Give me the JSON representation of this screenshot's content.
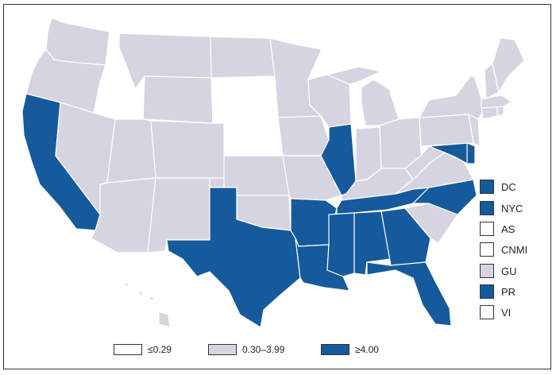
{
  "colors": {
    "low": "#ffffff",
    "mid": "#d6d4e0",
    "high": "#155a9c",
    "border": "#333333"
  },
  "legend": [
    {
      "label": "≤0.29",
      "category": "low"
    },
    {
      "label": "0.30–3.99",
      "category": "mid"
    },
    {
      "label": "≥4.00",
      "category": "high"
    }
  ],
  "territories": [
    {
      "label": "DC",
      "category": "high"
    },
    {
      "label": "NYC",
      "category": "high"
    },
    {
      "label": "AS",
      "category": "low"
    },
    {
      "label": "CNMI",
      "category": "low"
    },
    {
      "label": "GU",
      "category": "mid"
    },
    {
      "label": "PR",
      "category": "high"
    },
    {
      "label": "VI",
      "category": "low"
    }
  ],
  "states": {
    "WA": "mid",
    "OR": "mid",
    "CA": "high",
    "ID": "low",
    "NV": "mid",
    "MT": "mid",
    "WY": "mid",
    "UT": "mid",
    "AZ": "mid",
    "CO": "mid",
    "NM": "mid",
    "ND": "mid",
    "SD": "low",
    "NE": "low",
    "KS": "mid",
    "OK": "mid",
    "TX": "high",
    "MN": "mid",
    "IA": "mid",
    "MO": "mid",
    "AR": "high",
    "LA": "high",
    "WI": "mid",
    "IL": "high",
    "MI": "mid",
    "IN": "mid",
    "OH": "mid",
    "KY": "mid",
    "TN": "high",
    "MS": "high",
    "AL": "high",
    "GA": "high",
    "FL": "high",
    "SC": "mid",
    "NC": "high",
    "VA": "mid",
    "WV": "mid",
    "MD": "high",
    "DE": "high",
    "PA": "mid",
    "NJ": "mid",
    "NY": "mid",
    "CT": "mid",
    "RI": "mid",
    "MA": "mid",
    "VT": "low",
    "NH": "mid",
    "ME": "mid",
    "AK": "low",
    "HI": "mid"
  }
}
